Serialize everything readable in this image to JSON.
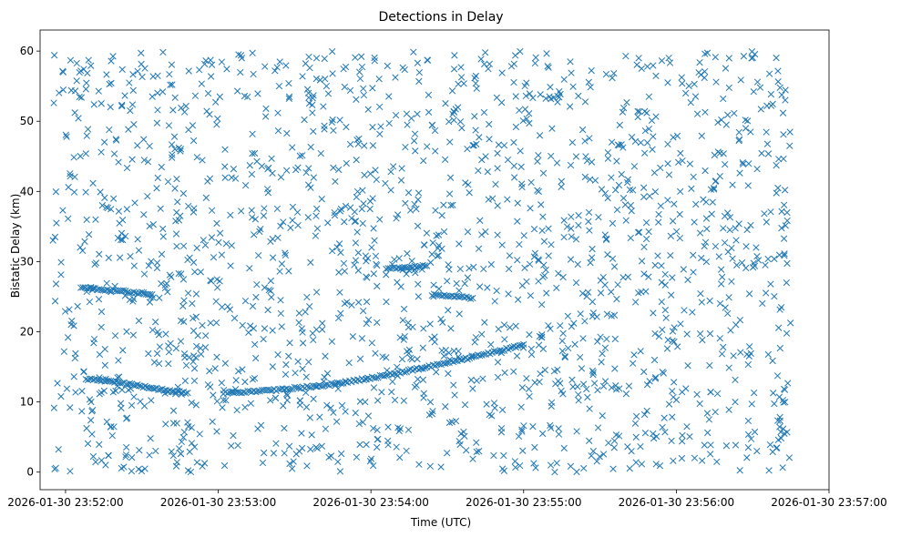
{
  "chart_data": {
    "type": "scatter",
    "title": "Detections in Delay",
    "xlabel": "Time (UTC)",
    "ylabel": "Bistatic Delay (km)",
    "marker": "x",
    "color": "#1f77b4",
    "grid": false,
    "legend": "none",
    "xlim": [
      "2026-01-30 23:51:50",
      "2026-01-30 23:57:00"
    ],
    "ylim": [
      -2.5,
      63
    ],
    "x_ticks": [
      "2026-01-30 23:52:00",
      "2026-01-30 23:53:00",
      "2026-01-30 23:54:00",
      "2026-01-30 23:55:00",
      "2026-01-30 23:56:00",
      "2026-01-30 23:57:00"
    ],
    "y_ticks": [
      0,
      10,
      20,
      30,
      40,
      50,
      60
    ],
    "data_range": {
      "x_start": "2026-01-30 23:51:55",
      "x_end": "2026-01-30 23:56:45",
      "y_min": 0,
      "y_max": 60
    },
    "series": [
      {
        "kind": "track",
        "points": [
          [
            "2026-01-30 23:52:06",
            26.4
          ],
          [
            "2026-01-30 23:52:10",
            26.2
          ],
          [
            "2026-01-30 23:52:14",
            26.0
          ],
          [
            "2026-01-30 23:52:18",
            25.9
          ],
          [
            "2026-01-30 23:52:22",
            25.8
          ],
          [
            "2026-01-30 23:52:26",
            25.6
          ],
          [
            "2026-01-30 23:52:30",
            25.5
          ],
          [
            "2026-01-30 23:52:34",
            25.3
          ]
        ]
      },
      {
        "kind": "track",
        "points": [
          [
            "2026-01-30 23:52:08",
            13.3
          ],
          [
            "2026-01-30 23:52:14",
            13.1
          ],
          [
            "2026-01-30 23:52:20",
            12.8
          ],
          [
            "2026-01-30 23:52:26",
            12.5
          ],
          [
            "2026-01-30 23:52:32",
            12.1
          ],
          [
            "2026-01-30 23:52:38",
            11.8
          ],
          [
            "2026-01-30 23:52:44",
            11.5
          ],
          [
            "2026-01-30 23:52:48",
            11.3
          ]
        ]
      },
      {
        "kind": "track",
        "points": [
          [
            "2026-01-30 23:53:02",
            11.3
          ],
          [
            "2026-01-30 23:53:10",
            11.4
          ],
          [
            "2026-01-30 23:53:18",
            11.6
          ],
          [
            "2026-01-30 23:53:26",
            11.8
          ],
          [
            "2026-01-30 23:53:34",
            12.1
          ],
          [
            "2026-01-30 23:53:42",
            12.4
          ],
          [
            "2026-01-30 23:53:50",
            12.8
          ],
          [
            "2026-01-30 23:53:58",
            13.3
          ],
          [
            "2026-01-30 23:54:06",
            13.8
          ],
          [
            "2026-01-30 23:54:14",
            14.4
          ],
          [
            "2026-01-30 23:54:22",
            15.0
          ],
          [
            "2026-01-30 23:54:30",
            15.6
          ],
          [
            "2026-01-30 23:54:38",
            16.2
          ],
          [
            "2026-01-30 23:54:46",
            16.9
          ],
          [
            "2026-01-30 23:54:54",
            17.6
          ],
          [
            "2026-01-30 23:55:00",
            18.2
          ]
        ]
      },
      {
        "kind": "track",
        "points": [
          [
            "2026-01-30 23:54:06",
            29.0
          ],
          [
            "2026-01-30 23:54:10",
            29.1
          ],
          [
            "2026-01-30 23:54:14",
            29.2
          ],
          [
            "2026-01-30 23:54:18",
            29.3
          ],
          [
            "2026-01-30 23:54:22",
            29.4
          ]
        ]
      },
      {
        "kind": "track",
        "points": [
          [
            "2026-01-30 23:54:24",
            25.3
          ],
          [
            "2026-01-30 23:54:28",
            25.1
          ],
          [
            "2026-01-30 23:54:32",
            25.0
          ],
          [
            "2026-01-30 23:54:36",
            24.9
          ],
          [
            "2026-01-30 23:54:40",
            24.8
          ]
        ]
      },
      {
        "kind": "clutter",
        "description_count": 1800,
        "distribution": "uniform over data_range"
      }
    ]
  }
}
